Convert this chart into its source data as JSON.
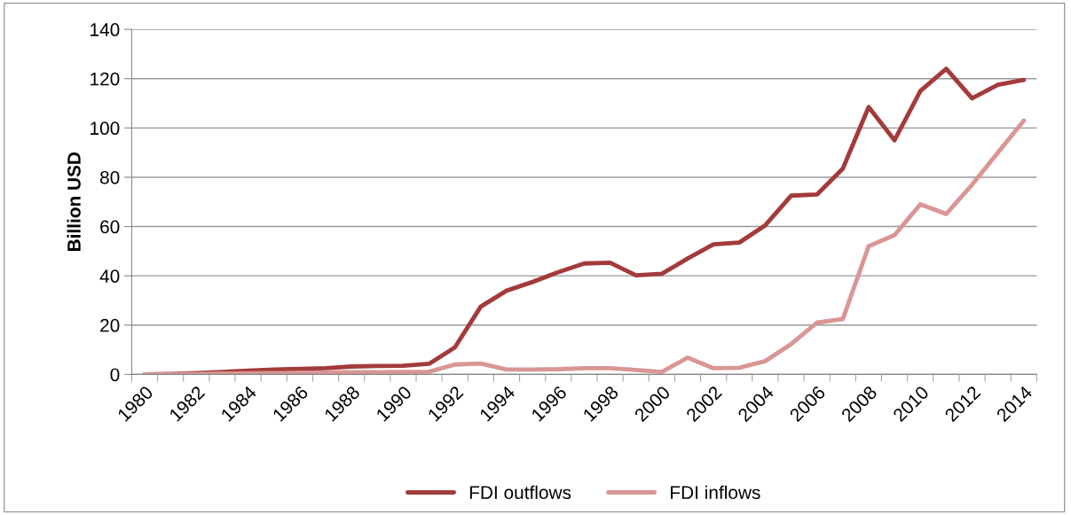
{
  "chart_data": {
    "type": "line",
    "ylabel": "Billion USD",
    "categories": [
      "1980",
      null,
      "1982",
      null,
      "1984",
      null,
      "1986",
      null,
      "1988",
      null,
      "1990",
      null,
      "1992",
      null,
      "1994",
      null,
      "1996",
      null,
      "1998",
      null,
      "2000",
      null,
      "2002",
      null,
      "2004",
      null,
      "2006",
      null,
      "2008",
      null,
      "2010",
      null,
      "2012",
      null,
      "2014"
    ],
    "series": [
      {
        "name": "FDI outflows",
        "color": "#a33b3a",
        "values": [
          0,
          0.2,
          0.5,
          1,
          1.5,
          2,
          2.2,
          2.5,
          3.2,
          3.4,
          3.5,
          4.3,
          11,
          27.5,
          34,
          37.5,
          41.5,
          45,
          45.3,
          40.2,
          40.8,
          47,
          52.8,
          53.5,
          60.5,
          72.5,
          73,
          83.5,
          108.5,
          95,
          115,
          124,
          112,
          117.5,
          119.5
        ]
      },
      {
        "name": "FDI inflows",
        "color": "#d99694",
        "values": [
          0,
          0.1,
          0.2,
          0.3,
          0.4,
          0.5,
          0.6,
          0.8,
          0.9,
          0.9,
          1,
          1.1,
          4,
          4.4,
          2,
          2,
          2.1,
          2.5,
          2.5,
          1.8,
          1,
          6.8,
          2.5,
          2.7,
          5.4,
          12.3,
          21,
          22.5,
          52,
          56.5,
          69,
          65.1,
          77,
          90,
          103
        ]
      }
    ],
    "ylim": [
      0,
      140
    ],
    "yticks": [
      0,
      20,
      40,
      60,
      80,
      100,
      120,
      140
    ],
    "grid": "y",
    "legend": "bottom",
    "marker": "none",
    "line_style": "solid"
  }
}
